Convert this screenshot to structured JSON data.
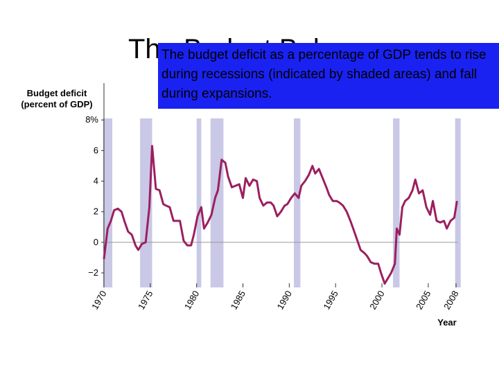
{
  "slide": {
    "title": "The Budget Balance",
    "note": "The budget deficit as a percentage of GDP tends to rise during recessions (indicated by shaded areas) and fall during expansions."
  },
  "chart_data": {
    "type": "line",
    "ylabel": [
      "Budget deficit",
      "(percent of GDP)"
    ],
    "xlabel": "Year",
    "x": [
      1970.0,
      1970.4,
      1970.75,
      1971.1,
      1971.5,
      1971.9,
      1972.2,
      1972.6,
      1973.0,
      1973.4,
      1973.7,
      1974.1,
      1974.5,
      1974.9,
      1975.2,
      1975.6,
      1976.0,
      1976.4,
      1976.7,
      1977.1,
      1977.5,
      1977.9,
      1978.2,
      1978.6,
      1979.0,
      1979.4,
      1979.7,
      1980.1,
      1980.5,
      1980.8,
      1981.2,
      1981.6,
      1982.0,
      1982.3,
      1982.7,
      1983.1,
      1983.4,
      1983.8,
      1984.2,
      1984.6,
      1985.0,
      1985.3,
      1985.7,
      1986.1,
      1986.5,
      1986.8,
      1987.2,
      1987.6,
      1988.0,
      1988.3,
      1988.7,
      1989.1,
      1989.5,
      1989.8,
      1990.2,
      1990.6,
      1991.0,
      1991.3,
      1991.7,
      1992.1,
      1992.5,
      1992.8,
      1993.2,
      1993.6,
      1994.0,
      1994.3,
      1994.7,
      1995.1,
      1995.4,
      1995.8,
      1996.2,
      1996.6,
      1996.9,
      1997.3,
      1997.7,
      1998.1,
      1998.4,
      1998.8,
      1999.2,
      1999.6,
      1999.9,
      2000.3,
      2000.7,
      2001.0,
      2001.4,
      2001.6,
      2001.9,
      2002.2,
      2002.5,
      2002.9,
      2003.3,
      2003.6,
      2004.0,
      2004.4,
      2004.8,
      2005.2,
      2005.5,
      2005.9,
      2006.3,
      2006.7,
      2007.0,
      2007.4,
      2007.8,
      2008.1
    ],
    "series": [
      {
        "color": "#9b1f5f",
        "values": [
          -1.1,
          0.9,
          1.4,
          2.1,
          2.2,
          2.0,
          1.4,
          0.7,
          0.5,
          -0.2,
          -0.5,
          -0.1,
          0,
          2.3,
          6.3,
          3.5,
          3.4,
          2.5,
          2.4,
          2.3,
          1.4,
          1.4,
          1.4,
          0.1,
          -0.2,
          -0.2,
          0.5,
          1.7,
          2.3,
          0.9,
          1.3,
          1.8,
          2.9,
          3.4,
          5.4,
          5.2,
          4.3,
          3.6,
          3.7,
          3.8,
          2.9,
          4.2,
          3.7,
          4.1,
          4.0,
          2.9,
          2.4,
          2.6,
          2.6,
          2.4,
          1.7,
          2.0,
          2.4,
          2.5,
          2.9,
          3.2,
          2.9,
          3.7,
          4.0,
          4.4,
          5.0,
          4.5,
          4.8,
          4.2,
          3.6,
          3.1,
          2.7,
          2.7,
          2.6,
          2.4,
          2.0,
          1.4,
          0.9,
          0.2,
          -0.5,
          -0.7,
          -0.9,
          -1.3,
          -1.4,
          -1.4,
          -2.0,
          -2.7,
          -2.3,
          -2.0,
          -1.4,
          0.9,
          0.5,
          2.3,
          2.7,
          2.9,
          3.4,
          4.1,
          3.2,
          3.4,
          2.3,
          1.8,
          2.7,
          1.4,
          1.3,
          1.4,
          0.9,
          1.4,
          1.6,
          2.7
        ]
      }
    ],
    "recessions": [
      [
        1969.9,
        1970.9
      ],
      [
        1973.9,
        1975.2
      ],
      [
        1980.0,
        1980.5
      ],
      [
        1981.5,
        1982.9
      ],
      [
        1990.5,
        1991.2
      ],
      [
        2001.2,
        2001.9
      ],
      [
        2007.9,
        2008.5
      ]
    ],
    "recession_color": "#c9c8e6",
    "xlim": [
      1970,
      2008.2
    ],
    "xticks": [
      1970,
      1975,
      1980,
      1985,
      1990,
      1995,
      2000,
      2005,
      2008
    ],
    "ylim": [
      -2.95,
      8.1
    ],
    "yticks": [
      {
        "value": -2,
        "label": "−2"
      },
      0,
      2,
      4,
      6,
      {
        "value": 8,
        "label": "8%"
      }
    ],
    "zero_line": true
  }
}
